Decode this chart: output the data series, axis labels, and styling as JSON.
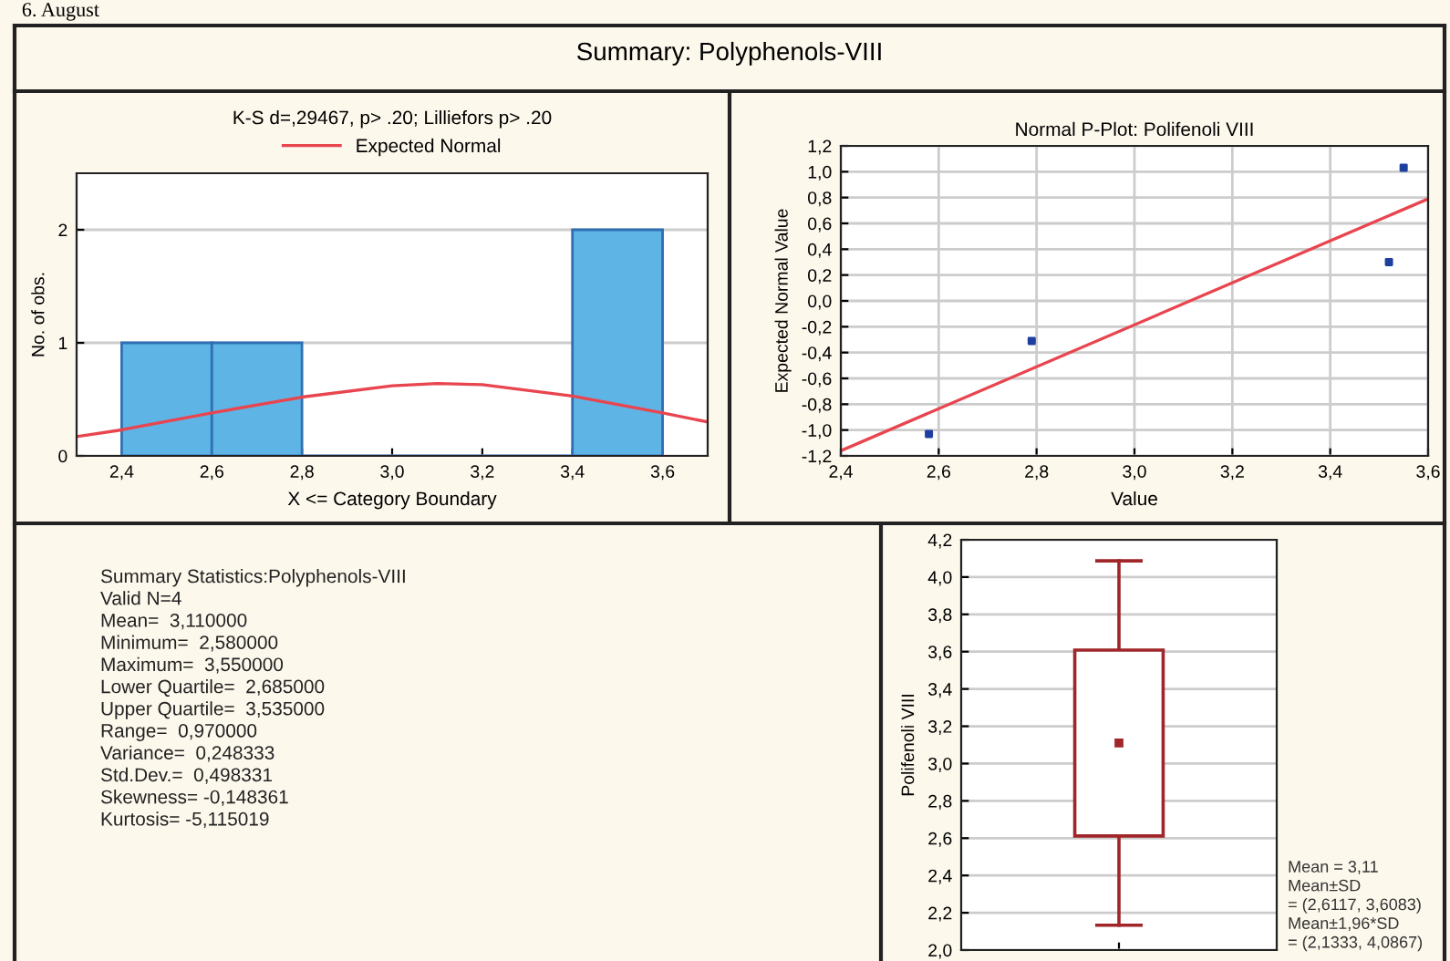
{
  "chart_data": [
    {
      "type": "other",
      "title": "Summary: Polyphenols-VIII",
      "annotations": [
        "6. August"
      ]
    },
    {
      "type": "histogram",
      "subtitle": "K-S d=,29467, p> .20; Lilliefors p> .20",
      "xlabel": "X <= Category Boundary",
      "ylabel": "No. of obs.",
      "bins": [
        2.4,
        2.6,
        2.8,
        3.0,
        3.2,
        3.4,
        3.6
      ],
      "values": [
        1,
        1,
        0,
        0,
        0,
        2
      ],
      "color": "#5fb4e6",
      "series": [
        {
          "type": "line",
          "name": "Expected Normal",
          "color": "#e8454f",
          "x": [
            2.3,
            2.4,
            2.6,
            2.8,
            3.0,
            3.1,
            3.2,
            3.4,
            3.6,
            3.7
          ],
          "values": [
            0.17,
            0.23,
            0.38,
            0.52,
            0.62,
            0.64,
            0.63,
            0.53,
            0.38,
            0.3
          ]
        }
      ],
      "xlim": [
        2.3,
        3.7
      ],
      "xticks": [
        {
          "value": 2.4,
          "label": "2,4"
        },
        {
          "value": 2.6,
          "label": "2,6"
        },
        {
          "value": 2.8,
          "label": "2,8"
        },
        {
          "value": 3.0,
          "label": "3,0"
        },
        {
          "value": 3.2,
          "label": "3,2"
        },
        {
          "value": 3.4,
          "label": "3,4"
        },
        {
          "value": 3.6,
          "label": "3,6"
        }
      ],
      "ylim": [
        0,
        2.5
      ],
      "yticks": [
        0,
        1,
        2
      ],
      "grid": "y",
      "legend": "top"
    },
    {
      "type": "scatter",
      "title": "Normal P-Plot: Polifenoli VIII",
      "xlabel": "Value",
      "ylabel": "Expected Normal Value",
      "series": [
        {
          "marker": "square",
          "color": "#1f3f9f",
          "x": [
            2.58,
            2.79,
            3.52,
            3.55
          ],
          "values": [
            -1.03,
            -0.31,
            0.3,
            1.03
          ]
        },
        {
          "type": "line",
          "color": "#e8454f",
          "x": [
            2.4,
            3.6
          ],
          "values": [
            -1.16,
            0.79
          ]
        }
      ],
      "xlim": [
        2.4,
        3.6
      ],
      "xticks": [
        {
          "value": 2.4,
          "label": "2,4"
        },
        {
          "value": 2.6,
          "label": "2,6"
        },
        {
          "value": 2.8,
          "label": "2,8"
        },
        {
          "value": 3.0,
          "label": "3,0"
        },
        {
          "value": 3.2,
          "label": "3,2"
        },
        {
          "value": 3.4,
          "label": "3,4"
        },
        {
          "value": 3.6,
          "label": "3,6"
        }
      ],
      "ylim": [
        -1.2,
        1.2
      ],
      "yticks": [
        {
          "value": -1.2,
          "label": "-1,2"
        },
        {
          "value": -1.0,
          "label": "-1,0"
        },
        {
          "value": -0.8,
          "label": "-0,8"
        },
        {
          "value": -0.6,
          "label": "-0,6"
        },
        {
          "value": -0.4,
          "label": "-0,4"
        },
        {
          "value": -0.2,
          "label": "-0,2"
        },
        {
          "value": 0.0,
          "label": "0,0"
        },
        {
          "value": 0.2,
          "label": "0,2"
        },
        {
          "value": 0.4,
          "label": "0,4"
        },
        {
          "value": 0.6,
          "label": "0,6"
        },
        {
          "value": 0.8,
          "label": "0,8"
        },
        {
          "value": 1.0,
          "label": "1,0"
        },
        {
          "value": 1.2,
          "label": "1,2"
        }
      ],
      "grid": true
    },
    {
      "type": "other",
      "title": "Summary Statistics:Polyphenols-VIII",
      "annotations": [
        "Valid N=4",
        "Mean=  3,110000",
        "Minimum=  2,580000",
        "Maximum=  3,550000",
        "Lower Quartile=  2,685000",
        "Upper Quartile=  3,535000",
        "Range=  0,970000",
        "Variance=  0,248333",
        "Std.Dev.=  0,498331",
        "Skewness= -0,148361",
        "Kurtosis= -5,115019"
      ]
    },
    {
      "type": "box",
      "ylabel": "Polifenoli VIII",
      "categories": [
        null
      ],
      "color": "#a0262a",
      "boxes": [
        {
          "low": 2.1333,
          "q1": 2.6117,
          "q3": 3.6083,
          "high": 4.0867,
          "mean": 3.11
        }
      ],
      "annotations": [
        "Mean = 3,11",
        "Mean±SD",
        "= (2,6117, 3,6083)",
        "Mean±1,96*SD",
        "= (2,1333, 4,0867)"
      ],
      "ylim": [
        2.0,
        4.2
      ],
      "yticks": [
        {
          "value": 2.0,
          "label": "2,0"
        },
        {
          "value": 2.2,
          "label": "2,2"
        },
        {
          "value": 2.4,
          "label": "2,4"
        },
        {
          "value": 2.6,
          "label": "2,6"
        },
        {
          "value": 2.8,
          "label": "2,8"
        },
        {
          "value": 3.0,
          "label": "3,0"
        },
        {
          "value": 3.2,
          "label": "3,2"
        },
        {
          "value": 3.4,
          "label": "3,4"
        },
        {
          "value": 3.6,
          "label": "3,6"
        },
        {
          "value": 3.8,
          "label": "3,8"
        },
        {
          "value": 4.0,
          "label": "4,0"
        },
        {
          "value": 4.2,
          "label": "4,2"
        }
      ],
      "grid": "y"
    }
  ]
}
